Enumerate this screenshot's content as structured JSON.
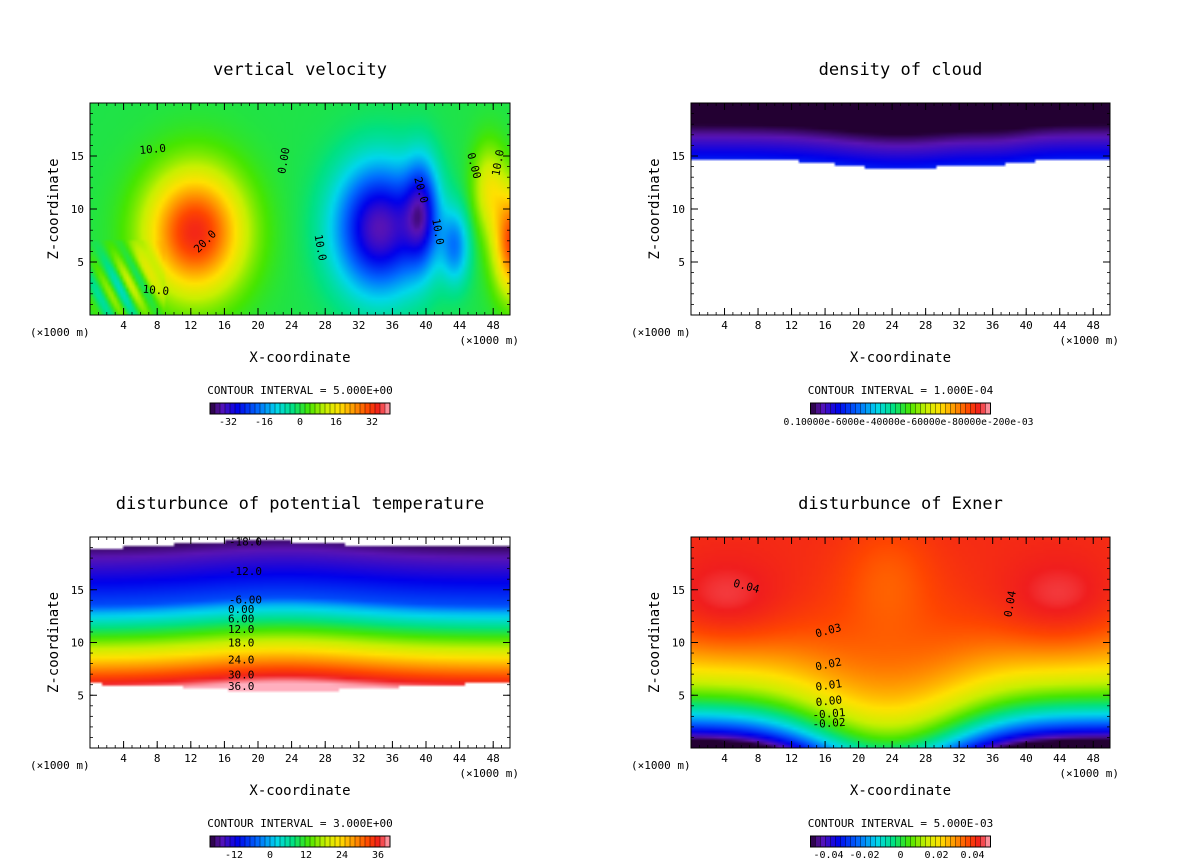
{
  "figure_title": "",
  "chart_data": [
    {
      "type": "heatmap",
      "title": "vertical velocity",
      "xlabel": "X-coordinate",
      "ylabel": "Z-coordinate",
      "x_unit_left": "(×1000 m)",
      "x_unit_right": "(×1000 m)",
      "xlim": [
        0,
        50
      ],
      "ylim": [
        0,
        20
      ],
      "xticks": [
        4,
        8,
        12,
        16,
        20,
        24,
        28,
        32,
        36,
        40,
        44,
        48
      ],
      "yticks": [
        5,
        10,
        15
      ],
      "contour_interval": "CONTOUR INTERVAL = 5.000E+00",
      "colorbar": {
        "colormap": "rainbow",
        "vmin": -40,
        "vmax": 40,
        "ticks": [
          "-32",
          "-16",
          "0",
          "16",
          "32"
        ]
      },
      "contour_labels": [
        {
          "text": "10.0",
          "x": 7.5,
          "z": 15.3,
          "rotate": -5
        },
        {
          "text": "20.0",
          "x": 14,
          "z": 6.7,
          "rotate": -45
        },
        {
          "text": "10.0",
          "x": 7.8,
          "z": 2.0,
          "rotate": 5
        },
        {
          "text": "0.00",
          "x": 23.5,
          "z": 14.5,
          "rotate": -80
        },
        {
          "text": "10.0",
          "x": 27,
          "z": 6.3,
          "rotate": 80
        },
        {
          "text": "20.0",
          "x": 39,
          "z": 11.7,
          "rotate": 75
        },
        {
          "text": "10.0",
          "x": 41,
          "z": 7.8,
          "rotate": 80
        },
        {
          "text": "0.00",
          "x": 45.3,
          "z": 14.0,
          "rotate": 75
        },
        {
          "text": "10.0",
          "x": 49,
          "z": 14.3,
          "rotate": -80
        }
      ]
    },
    {
      "type": "heatmap",
      "title": "density of cloud",
      "xlabel": "X-coordinate",
      "ylabel": "Z-coordinate",
      "x_unit_left": "(×1000 m)",
      "x_unit_right": "(×1000 m)",
      "xlim": [
        0,
        50
      ],
      "ylim": [
        0,
        20
      ],
      "xticks": [
        4,
        8,
        12,
        16,
        20,
        24,
        28,
        32,
        36,
        40,
        44,
        48
      ],
      "yticks": [
        5,
        10,
        15
      ],
      "contour_interval": "CONTOUR INTERVAL = 1.000E-04",
      "colorbar": {
        "colormap": "rainbow",
        "vmin": 0,
        "vmax": 1,
        "tick_text": "0.10000e-6000e-40000e-60000e-80000e-200e-03"
      },
      "contour_labels": []
    },
    {
      "type": "heatmap",
      "title": "disturbunce of potential temperature",
      "xlabel": "X-coordinate",
      "ylabel": "Z-coordinate",
      "x_unit_left": "(×1000 m)",
      "x_unit_right": "(×1000 m)",
      "xlim": [
        0,
        50
      ],
      "ylim": [
        0,
        20
      ],
      "xticks": [
        4,
        8,
        12,
        16,
        20,
        24,
        28,
        32,
        36,
        40,
        44,
        48
      ],
      "yticks": [
        5,
        10,
        15
      ],
      "contour_interval": "CONTOUR INTERVAL = 3.000E+00",
      "colorbar": {
        "colormap": "rainbow",
        "vmin": -20,
        "vmax": 40,
        "ticks": [
          "-12",
          "0",
          "12",
          "24",
          "36"
        ]
      },
      "contour_labels": [
        {
          "text": "-18.0",
          "x": 18.5,
          "z": 19.2,
          "rotate": 0
        },
        {
          "text": "-12.0",
          "x": 18.5,
          "z": 16.4,
          "rotate": 0
        },
        {
          "text": "-6.00",
          "x": 18.5,
          "z": 13.7,
          "rotate": 0
        },
        {
          "text": "0.00",
          "x": 18,
          "z": 12.8,
          "rotate": 0
        },
        {
          "text": "6.00",
          "x": 18,
          "z": 11.9,
          "rotate": 0
        },
        {
          "text": "12.0",
          "x": 18,
          "z": 10.9,
          "rotate": 0
        },
        {
          "text": "18.0",
          "x": 18,
          "z": 9.6,
          "rotate": 0
        },
        {
          "text": "24.0",
          "x": 18,
          "z": 8.0,
          "rotate": 0
        },
        {
          "text": "30.0",
          "x": 18,
          "z": 6.6,
          "rotate": 0
        },
        {
          "text": "36.0",
          "x": 18,
          "z": 5.5,
          "rotate": 0
        }
      ]
    },
    {
      "type": "heatmap",
      "title": "disturbunce of Exner",
      "xlabel": "X-coordinate",
      "ylabel": "Z-coordinate",
      "x_unit_left": "(×1000 m)",
      "x_unit_right": "(×1000 m)",
      "xlim": [
        0,
        50
      ],
      "ylim": [
        0,
        20
      ],
      "xticks": [
        4,
        8,
        12,
        16,
        20,
        24,
        28,
        32,
        36,
        40,
        44,
        48
      ],
      "yticks": [
        5,
        10,
        15
      ],
      "contour_interval": "CONTOUR INTERVAL = 5.000E-03",
      "colorbar": {
        "colormap": "rainbow",
        "vmin": -0.05,
        "vmax": 0.05,
        "ticks": [
          "-0.04",
          "-0.02",
          "0",
          "0.02",
          "0.04"
        ]
      },
      "contour_labels": [
        {
          "text": "0.04",
          "x": 6.5,
          "z": 15.0,
          "rotate": 15
        },
        {
          "text": "0.04",
          "x": 38.5,
          "z": 13.6,
          "rotate": -80
        },
        {
          "text": "0.03",
          "x": 16.5,
          "z": 10.8,
          "rotate": -15
        },
        {
          "text": "0.02",
          "x": 16.5,
          "z": 7.6,
          "rotate": -12
        },
        {
          "text": "0.01",
          "x": 16.5,
          "z": 5.6,
          "rotate": -8
        },
        {
          "text": "0.00",
          "x": 16.5,
          "z": 4.1,
          "rotate": -6
        },
        {
          "text": "-0.01",
          "x": 16.5,
          "z": 2.9,
          "rotate": -5
        },
        {
          "text": "-0.02",
          "x": 16.5,
          "z": 2.0,
          "rotate": -4
        }
      ]
    }
  ]
}
